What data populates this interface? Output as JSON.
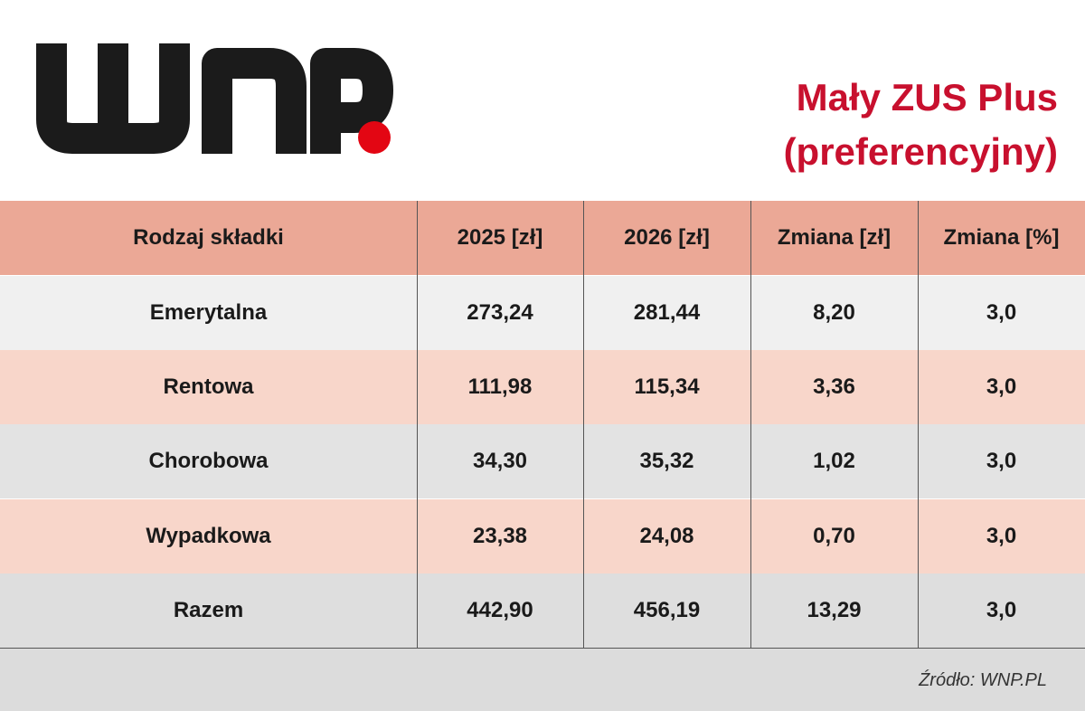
{
  "header": {
    "title": [
      "Mały ZUS Plus",
      "(preferencyjny)"
    ]
  },
  "table": {
    "columns": [
      "Rodzaj składki",
      "2025 [zł]",
      "2026 [zł]",
      "Zmiana [zł]",
      "Zmiana [%]"
    ],
    "rows": [
      [
        "Emerytalna",
        "273,24",
        "281,44",
        "8,20",
        "3,0"
      ],
      [
        "Rentowa",
        "111,98",
        "115,34",
        "3,36",
        "3,0"
      ],
      [
        "Chorobowa",
        "34,30",
        "35,32",
        "1,02",
        "3,0"
      ],
      [
        "Wypadkowa",
        "23,38",
        "24,08",
        "0,70",
        "3,0"
      ],
      [
        "Razem",
        "442,90",
        "456,19",
        "13,29",
        "3,0"
      ]
    ]
  },
  "source": "Źródło: WNP.PL"
}
